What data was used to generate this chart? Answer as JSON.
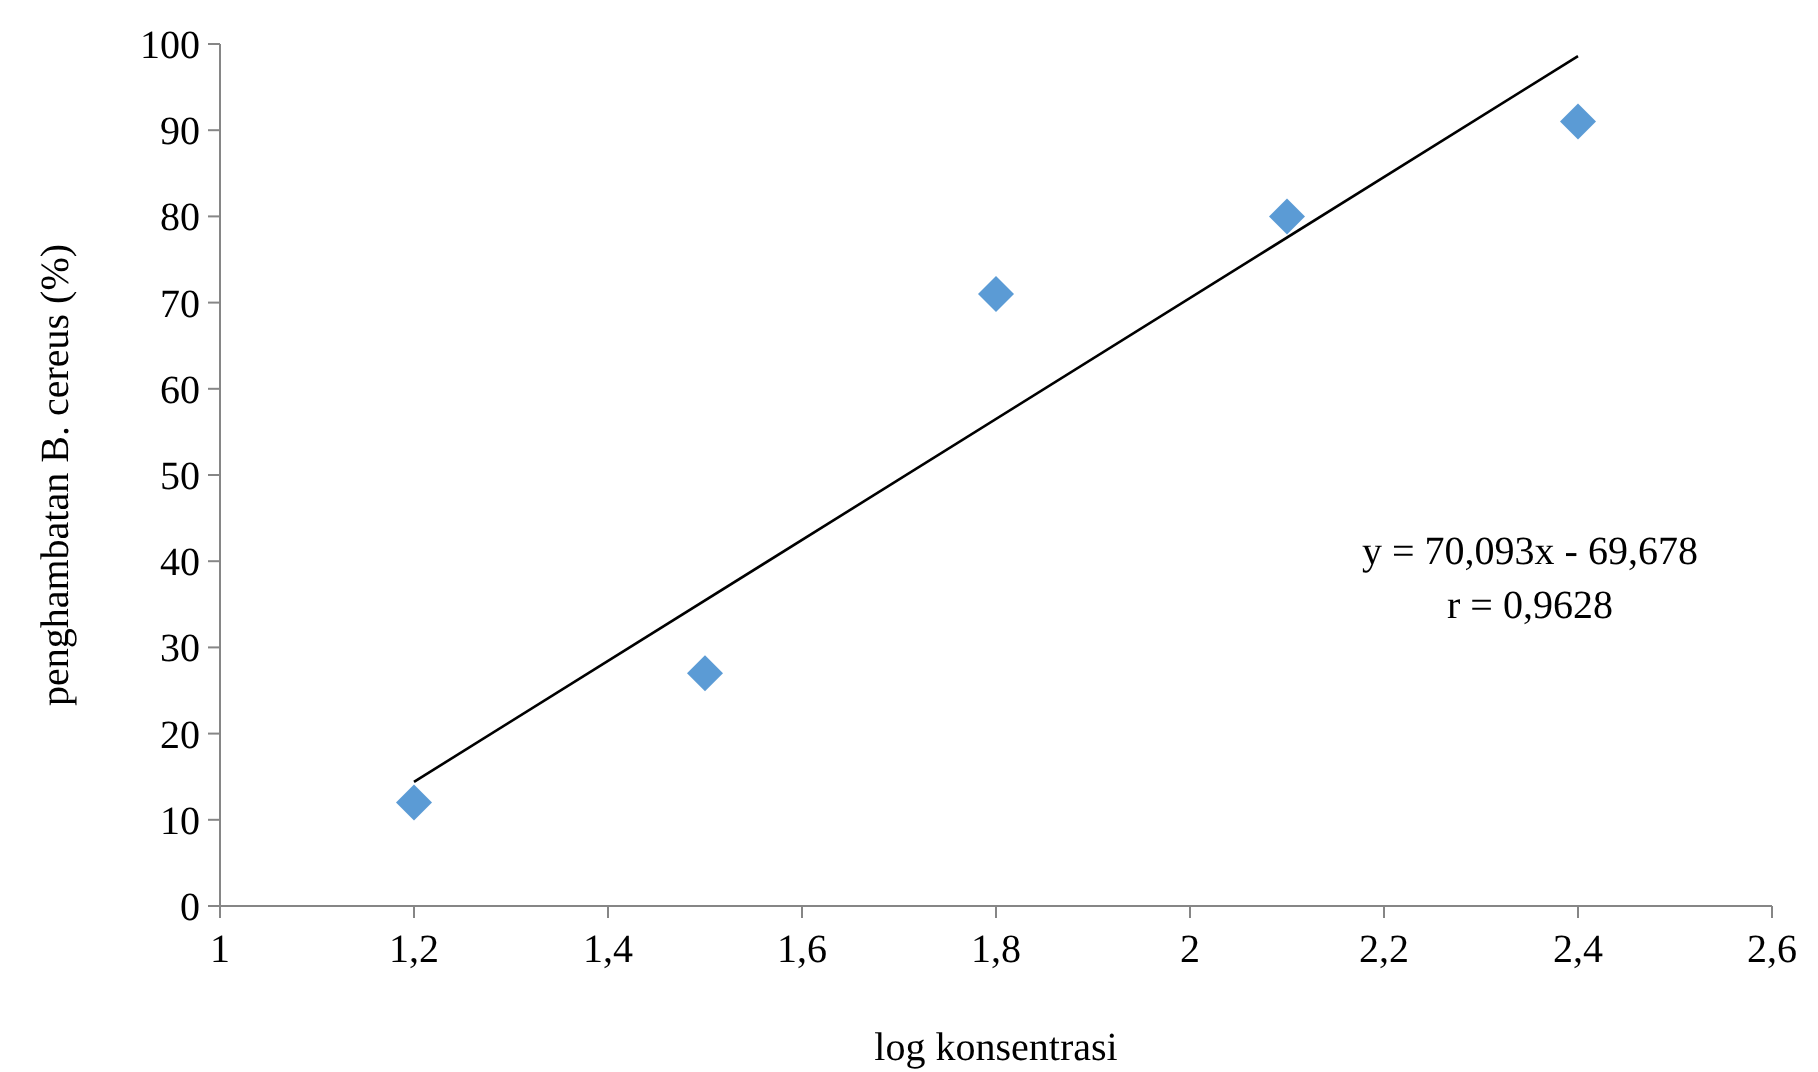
{
  "chart_data": {
    "type": "scatter",
    "xlabel": "log konsentrasi",
    "ylabel": "penghambatan B. cereus (%)",
    "series": [
      {
        "color": "#5b9bd5",
        "x": [
          1.2,
          1.5,
          1.8,
          2.1,
          2.4
        ],
        "values": [
          12,
          27,
          71,
          80,
          91
        ],
        "marker": "diamond"
      },
      {
        "type": "line",
        "color": "#000000",
        "x": [
          1.2,
          2.4
        ],
        "values": [
          14.4,
          98.6
        ],
        "marker": "none"
      }
    ],
    "xlim": [
      1,
      2.6
    ],
    "ylim": [
      0,
      100
    ],
    "xticks": [
      1,
      {
        "value": 1.2,
        "label": "1,2"
      },
      {
        "value": 1.4,
        "label": "1,4"
      },
      {
        "value": 1.6,
        "label": "1,6"
      },
      {
        "value": 1.8,
        "label": "1,8"
      },
      2,
      {
        "value": 2.2,
        "label": "2,2"
      },
      {
        "value": 2.4,
        "label": "2,4"
      },
      {
        "value": 2.6,
        "label": "2,6"
      }
    ],
    "yticks": [
      0,
      10,
      20,
      30,
      40,
      50,
      60,
      70,
      80,
      90,
      100
    ],
    "annotations": [
      "y = 70,093x - 69,678",
      "r = 0,9628"
    ],
    "grid": false
  }
}
